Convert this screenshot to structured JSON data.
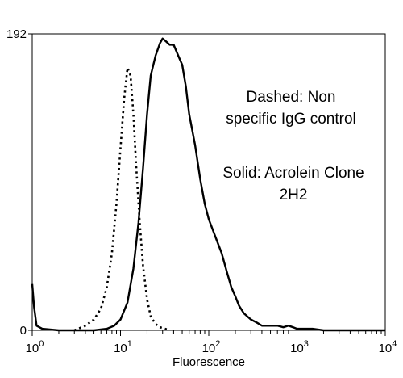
{
  "chart_data": {
    "type": "line",
    "title": "",
    "xlabel": "Fluorescence",
    "ylabel": "",
    "x_scale": "log",
    "xlim": [
      1,
      10000
    ],
    "ylim": [
      0,
      192
    ],
    "x_ticks": [
      {
        "base": "10",
        "exp": "0",
        "value": 1
      },
      {
        "base": "10",
        "exp": "1",
        "value": 10
      },
      {
        "base": "10",
        "exp": "2",
        "value": 100
      },
      {
        "base": "10",
        "exp": "3",
        "value": 1000
      },
      {
        "base": "10",
        "exp": "4",
        "value": 10000
      }
    ],
    "y_ticks": [
      {
        "label": "0",
        "value": 0
      },
      {
        "label": "192",
        "value": 192
      }
    ],
    "annotations": [
      {
        "name": "dashed",
        "lines": [
          "Dashed: Non",
          "specific IgG control"
        ]
      },
      {
        "name": "solid",
        "lines": [
          "Solid: Acrolein Clone",
          "2H2"
        ]
      }
    ],
    "series": [
      {
        "name": "Dashed: Non specific IgG control",
        "style": "dotted",
        "color": "#000000",
        "x": [
          3.0,
          4.0,
          5.0,
          6.0,
          7.0,
          8.0,
          9.0,
          10.0,
          11.0,
          12.0,
          13.0,
          14.0,
          15.0,
          16.5,
          18.0,
          20.0,
          22.0,
          25.0,
          28.0,
          32.0,
          36.0
        ],
        "y": [
          0,
          3,
          7,
          14,
          28,
          50,
          82,
          118,
          150,
          170,
          165,
          140,
          108,
          70,
          42,
          20,
          9,
          4,
          2,
          1,
          0
        ]
      },
      {
        "name": "Solid: Acrolein Clone 2H2",
        "style": "solid",
        "color": "#000000",
        "x": [
          1.0,
          1.05,
          1.12,
          1.3,
          2,
          3,
          5,
          7,
          8.5,
          10,
          12,
          14,
          16,
          18,
          20,
          22,
          25,
          28,
          30,
          33,
          36,
          40,
          45,
          50,
          55,
          60,
          70,
          80,
          90,
          100,
          120,
          140,
          160,
          180,
          200,
          220,
          250,
          300,
          350,
          400,
          500,
          600,
          700,
          800,
          900,
          1000,
          1200,
          1500,
          2000,
          3000,
          5000,
          10000
        ],
        "y": [
          30,
          15,
          3,
          1,
          0,
          0,
          0,
          1,
          3,
          7,
          18,
          40,
          70,
          105,
          140,
          165,
          178,
          186,
          189,
          187,
          185,
          185,
          178,
          172,
          158,
          140,
          120,
          98,
          82,
          72,
          60,
          50,
          38,
          28,
          22,
          16,
          11,
          7,
          5,
          3,
          3,
          3,
          2,
          3,
          2,
          1,
          1,
          1,
          0,
          0,
          0,
          0
        ]
      }
    ]
  }
}
